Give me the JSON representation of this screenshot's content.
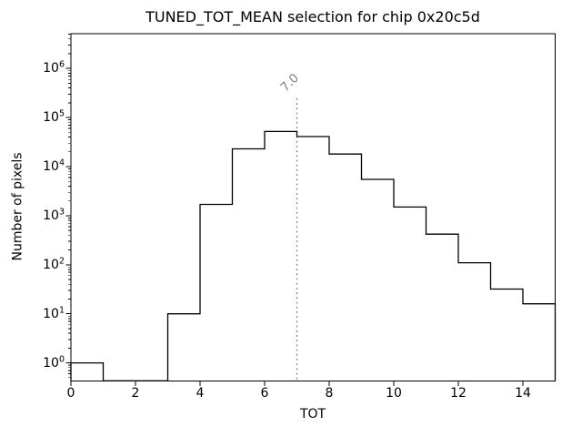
{
  "figure": {
    "background": "#ffffff"
  },
  "chart_data": {
    "type": "bar",
    "subtype": "step_histogram",
    "title": "TUNED_TOT_MEAN selection for chip 0x20c5d",
    "xlabel": "TOT",
    "ylabel": "Number of pixels",
    "yscale": "log",
    "grid": false,
    "legend": null,
    "xlim": [
      0,
      15
    ],
    "ylim": [
      0.43,
      5100000
    ],
    "bin_edges": [
      0,
      1,
      2,
      3,
      4,
      5,
      6,
      7,
      8,
      9,
      10,
      11,
      12,
      13,
      14,
      15
    ],
    "counts": [
      1,
      0,
      0,
      10,
      1700,
      23000,
      52000,
      41000,
      18000,
      5500,
      1500,
      420,
      110,
      32,
      16
    ],
    "x_ticks": [
      0,
      2,
      4,
      6,
      8,
      10,
      12,
      14
    ],
    "y_tick_exponents": [
      0,
      1,
      2,
      3,
      4,
      5,
      6
    ],
    "line_color": "#000000",
    "axis_color": "#000000",
    "vline": {
      "x": 7.0,
      "label": "7.0",
      "color": "#808080",
      "style": "dotted"
    }
  }
}
